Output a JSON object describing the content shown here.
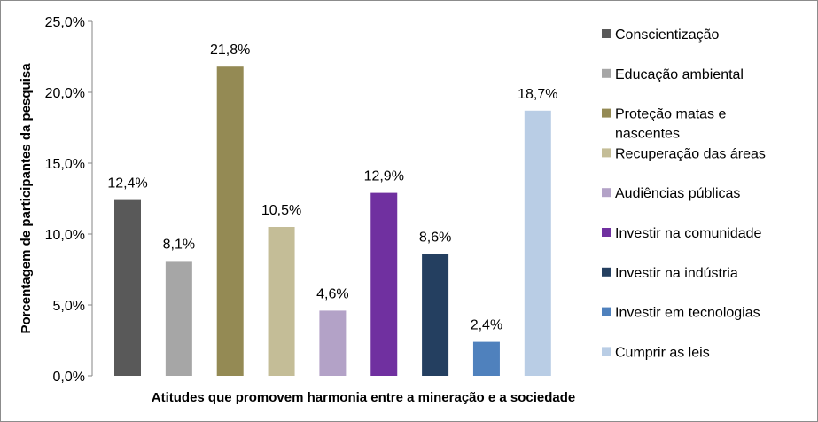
{
  "chart_data": {
    "type": "bar",
    "xlabel": "Atitudes que promovem harmonia entre a mineração e a sociedade",
    "ylabel": "Porcentagem de participantes da pesquisa",
    "ylim": [
      0,
      25
    ],
    "yticks": [
      "0,0%",
      "5,0%",
      "10,0%",
      "15,0%",
      "20,0%",
      "25,0%"
    ],
    "grid": false,
    "legend_position": "right",
    "categories": [
      "Conscientização",
      "Educação ambiental",
      "Proteção matas e nascentes",
      "Recuperação das áreas",
      "Audiências públicas",
      "Investir na comunidade",
      "Investir na indústria",
      "Investir em tecnologias",
      "Cumprir as leis"
    ],
    "values": [
      12.4,
      8.1,
      21.8,
      10.5,
      4.6,
      12.9,
      8.6,
      2.4,
      18.7
    ],
    "data_labels": [
      "12,4%",
      "8,1%",
      "21,8%",
      "10,5%",
      "4,6%",
      "12,9%",
      "8,6%",
      "2,4%",
      "18,7%"
    ],
    "colors": [
      "#595959",
      "#a6a6a6",
      "#948a54",
      "#c4bd97",
      "#b3a2c7",
      "#7030a0",
      "#243f60",
      "#4f81bd",
      "#b9cde5"
    ],
    "legend": [
      [
        "Conscientização"
      ],
      [
        "Educação ambiental"
      ],
      [
        "Proteção matas e",
        "nascentes"
      ],
      [
        "Recuperação das áreas"
      ],
      [
        "Audiências públicas"
      ],
      [
        "Investir na comunidade"
      ],
      [
        "Investir na indústria"
      ],
      [
        "Investir em tecnologias"
      ],
      [
        "Cumprir as leis"
      ]
    ]
  }
}
